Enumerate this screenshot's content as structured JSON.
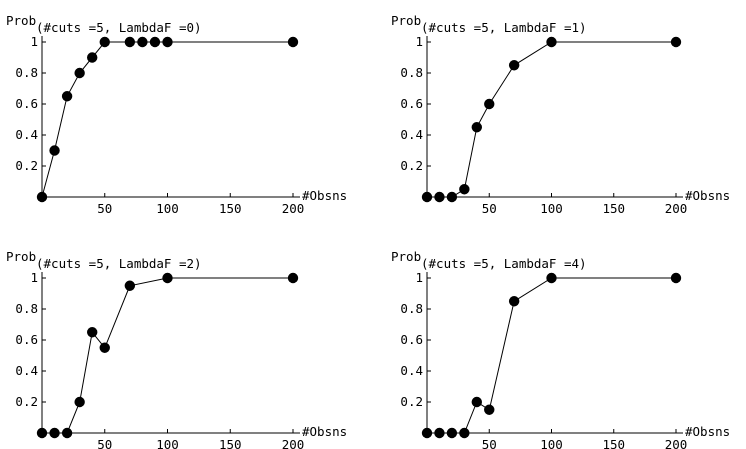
{
  "chart_data": [
    {
      "type": "line",
      "ylabel": "Prob",
      "title": "(#cuts =5, LambdaF =0)",
      "xlabel": "#Obsns",
      "x_ticks": [
        "50",
        "100",
        "150",
        "200"
      ],
      "y_ticks": [
        "0.2",
        "0.4",
        "0.6",
        "0.8",
        "1"
      ],
      "xlim": [
        0,
        200
      ],
      "ylim": [
        0,
        1
      ],
      "points": [
        {
          "x": 0,
          "y": 0
        },
        {
          "x": 10,
          "y": 0.3
        },
        {
          "x": 20,
          "y": 0.65
        },
        {
          "x": 30,
          "y": 0.8
        },
        {
          "x": 40,
          "y": 0.9
        },
        {
          "x": 50,
          "y": 1
        },
        {
          "x": 70,
          "y": 1
        },
        {
          "x": 80,
          "y": 1
        },
        {
          "x": 90,
          "y": 1
        },
        {
          "x": 100,
          "y": 1
        },
        {
          "x": 200,
          "y": 1
        }
      ]
    },
    {
      "type": "line",
      "ylabel": "Prob",
      "title": "(#cuts =5, LambdaF =1)",
      "xlabel": "#Obsns",
      "x_ticks": [
        "50",
        "100",
        "150",
        "200"
      ],
      "y_ticks": [
        "0.2",
        "0.4",
        "0.6",
        "0.8",
        "1"
      ],
      "xlim": [
        0,
        200
      ],
      "ylim": [
        0,
        1
      ],
      "points": [
        {
          "x": 0,
          "y": 0
        },
        {
          "x": 10,
          "y": 0
        },
        {
          "x": 20,
          "y": 0
        },
        {
          "x": 30,
          "y": 0.05
        },
        {
          "x": 40,
          "y": 0.45
        },
        {
          "x": 50,
          "y": 0.6
        },
        {
          "x": 70,
          "y": 0.85
        },
        {
          "x": 100,
          "y": 1
        },
        {
          "x": 200,
          "y": 1
        }
      ]
    },
    {
      "type": "line",
      "ylabel": "Prob",
      "title": "(#cuts =5, LambdaF =2)",
      "xlabel": "#Obsns",
      "x_ticks": [
        "50",
        "100",
        "150",
        "200"
      ],
      "y_ticks": [
        "0.2",
        "0.4",
        "0.6",
        "0.8",
        "1"
      ],
      "xlim": [
        0,
        200
      ],
      "ylim": [
        0,
        1
      ],
      "points": [
        {
          "x": 0,
          "y": 0
        },
        {
          "x": 10,
          "y": 0
        },
        {
          "x": 20,
          "y": 0
        },
        {
          "x": 30,
          "y": 0.2
        },
        {
          "x": 40,
          "y": 0.65
        },
        {
          "x": 50,
          "y": 0.55
        },
        {
          "x": 70,
          "y": 0.95
        },
        {
          "x": 100,
          "y": 1
        },
        {
          "x": 200,
          "y": 1
        }
      ]
    },
    {
      "type": "line",
      "ylabel": "Prob",
      "title": "(#cuts =5, LambdaF =4)",
      "xlabel": "#Obsns",
      "x_ticks": [
        "50",
        "100",
        "150",
        "200"
      ],
      "y_ticks": [
        "0.2",
        "0.4",
        "0.6",
        "0.8",
        "1"
      ],
      "xlim": [
        0,
        200
      ],
      "ylim": [
        0,
        1
      ],
      "points": [
        {
          "x": 0,
          "y": 0
        },
        {
          "x": 10,
          "y": 0
        },
        {
          "x": 20,
          "y": 0
        },
        {
          "x": 30,
          "y": 0
        },
        {
          "x": 40,
          "y": 0.2
        },
        {
          "x": 50,
          "y": 0.15
        },
        {
          "x": 70,
          "y": 0.85
        },
        {
          "x": 100,
          "y": 1
        },
        {
          "x": 200,
          "y": 1
        }
      ]
    }
  ]
}
